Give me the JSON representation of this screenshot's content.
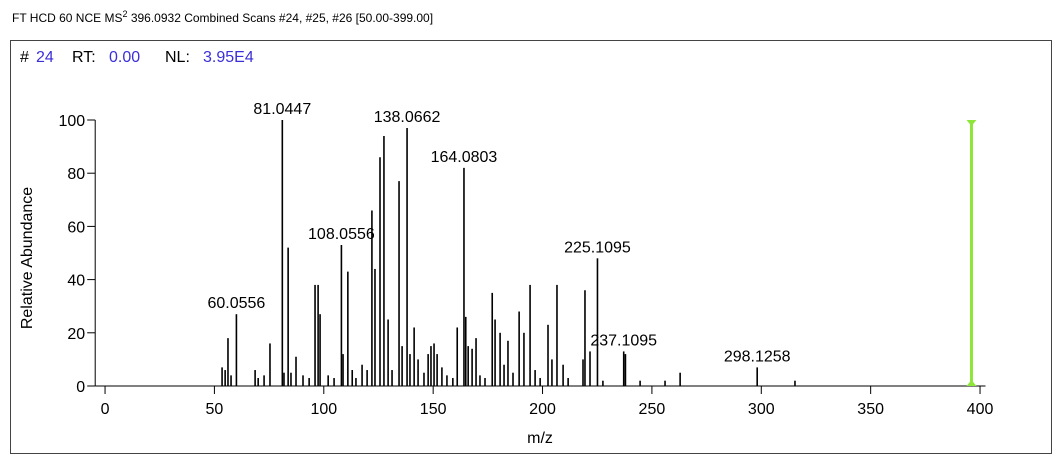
{
  "chart_data": {
    "type": "stick",
    "header": [
      "FT HCD 60 NCE MS",
      "2",
      " 396.0932 Combined Scans #24, #25, #26 [50.00-399.00]"
    ],
    "scan_label": "#",
    "scan": "24",
    "rt_label": "RT:",
    "rt": "0.00",
    "nl_label": "NL:",
    "nl": "3.95E4",
    "xlabel": "m/z",
    "ylabel": "Relative Abundance",
    "xlim": [
      -4.5,
      402.5
    ],
    "ylim": [
      0,
      100
    ],
    "xticks": [
      0,
      50,
      100,
      150,
      200,
      250,
      300,
      350,
      400
    ],
    "yticks": [
      0,
      20,
      40,
      60,
      80,
      100
    ],
    "color": "#000000",
    "precursor": 396.0932,
    "precursor_color": "#8fe63a",
    "x": [
      53.5,
      54.9,
      56.2,
      57.6,
      60.0556,
      68.6,
      70,
      72.7,
      75.4,
      81.0447,
      81.8,
      83.7,
      85,
      87.3,
      90.5,
      93.3,
      96,
      97.4,
      98.3,
      102,
      104.7,
      108.0556,
      108.8,
      111,
      113,
      114.7,
      117.5,
      119.8,
      122,
      123.4,
      125.7,
      127.5,
      129.4,
      131.2,
      134.4,
      135.8,
      138.0662,
      139.4,
      141.3,
      143.1,
      145.8,
      147.7,
      149,
      150.4,
      151.8,
      154,
      156.3,
      159,
      161,
      164.0803,
      164.9,
      166,
      167.8,
      169.6,
      171.4,
      173.7,
      177,
      178.3,
      180.6,
      182.4,
      184.2,
      186.5,
      189.3,
      191.5,
      194.3,
      196.6,
      198.9,
      202.5,
      204.3,
      206.6,
      209.4,
      211.7,
      218.5,
      219.4,
      221.7,
      225.1095,
      227.6,
      237.1095,
      237.9,
      244.6,
      256,
      262.9,
      298.1258,
      315.4
    ],
    "values": [
      7,
      6,
      18,
      4,
      27,
      6,
      3,
      4,
      16,
      100,
      5,
      52,
      5,
      11,
      4,
      3,
      38,
      38,
      27,
      4,
      3,
      53,
      12,
      43,
      6,
      3,
      8,
      6,
      66,
      44,
      86,
      94,
      25,
      6,
      77,
      15,
      97,
      12,
      22,
      10,
      5,
      12,
      15,
      16,
      12,
      7,
      4,
      3,
      22,
      82,
      26,
      15,
      14,
      18,
      4,
      3,
      35,
      25,
      20,
      8,
      17,
      5,
      28,
      20,
      38,
      6,
      3,
      23,
      10,
      38,
      8,
      3,
      10,
      36,
      13,
      48,
      2,
      13,
      12,
      2,
      2,
      5,
      7,
      2
    ],
    "x_labels": [
      null,
      null,
      null,
      null,
      "60.0556",
      null,
      null,
      null,
      null,
      "81.0447",
      null,
      null,
      null,
      null,
      null,
      null,
      null,
      null,
      null,
      null,
      null,
      "108.0556",
      null,
      null,
      null,
      null,
      null,
      null,
      null,
      null,
      null,
      null,
      null,
      null,
      null,
      null,
      "138.0662",
      null,
      null,
      null,
      null,
      null,
      null,
      null,
      null,
      null,
      null,
      null,
      null,
      "164.0803",
      null,
      null,
      null,
      null,
      null,
      null,
      null,
      null,
      null,
      null,
      null,
      null,
      null,
      null,
      null,
      null,
      null,
      null,
      null,
      null,
      null,
      null,
      null,
      null,
      null,
      "225.1095",
      null,
      "237.1095",
      null,
      null,
      null,
      null,
      "298.1258",
      null
    ]
  }
}
